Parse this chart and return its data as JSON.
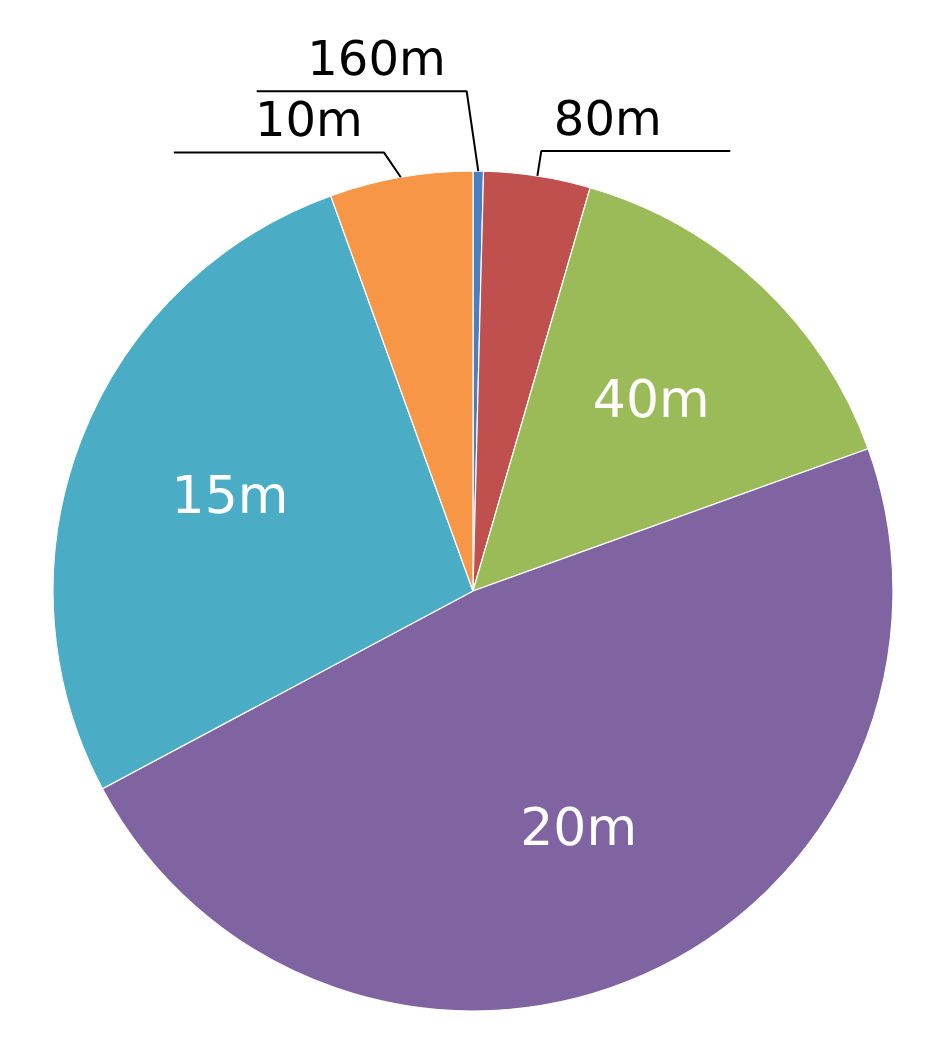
{
  "chart_data": {
    "type": "pie",
    "categories": [
      "160m",
      "80m",
      "40m",
      "20m",
      "15m",
      "10m"
    ],
    "values": [
      0.4,
      4.1,
      15,
      47.7,
      27.3,
      5.5
    ],
    "colors": [
      "#4a7fc1",
      "#c0504d",
      "#9bbb59",
      "#8064a2",
      "#4bacc6",
      "#f79646"
    ],
    "legend": false
  }
}
